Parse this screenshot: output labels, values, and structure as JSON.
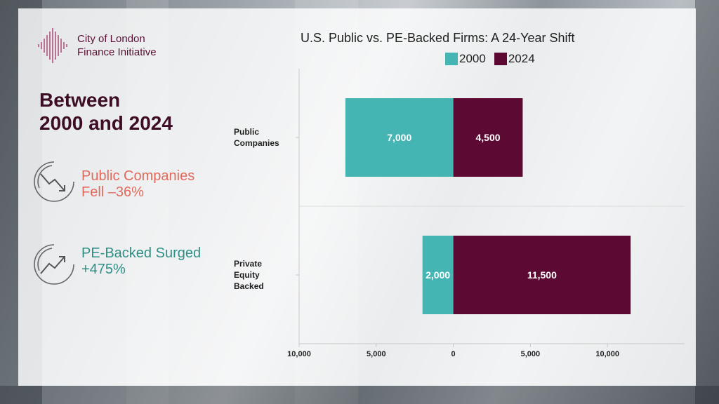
{
  "brand": {
    "line1": "City of London",
    "line2": "Finance Initiative"
  },
  "heading": {
    "line1": "Between",
    "line2": "2000 and 2024"
  },
  "stats": [
    {
      "line1": "Public Companies",
      "line2": "Fell –36%",
      "icon": "trend-down-icon",
      "color": "#e06a5c"
    },
    {
      "line1": "PE-Backed Surged",
      "line2": "+475%",
      "icon": "trend-up-icon",
      "color": "#2f8f86"
    }
  ],
  "colors": {
    "series_2000": "#45b5b3",
    "series_2024": "#5c0a33",
    "brand": "#5a0f35"
  },
  "chart_data": {
    "type": "bar",
    "orientation": "horizontal",
    "layout": "butterfly",
    "title": "U.S. Public vs. PE-Backed Firms: A 24-Year Shift",
    "categories": [
      "Public Companies",
      "Private Equity Backed"
    ],
    "category_lines": [
      [
        "Public",
        "Companies"
      ],
      [
        "Private",
        "Equity",
        "Backed"
      ]
    ],
    "series": [
      {
        "name": "2000",
        "values": [
          7000,
          2000
        ],
        "side": "left"
      },
      {
        "name": "2024",
        "values": [
          4500,
          11500
        ],
        "side": "right"
      }
    ],
    "data_labels": [
      [
        "7,000",
        "2,000"
      ],
      [
        "4,500",
        "11,500"
      ]
    ],
    "xlim": [
      -10000,
      15000
    ],
    "ticks": [
      -10000,
      -5000,
      0,
      5000,
      10000
    ],
    "tick_labels": [
      "10,000",
      "5,000",
      "0",
      "5,000",
      "10,000"
    ],
    "legend": "top",
    "grid": true
  }
}
